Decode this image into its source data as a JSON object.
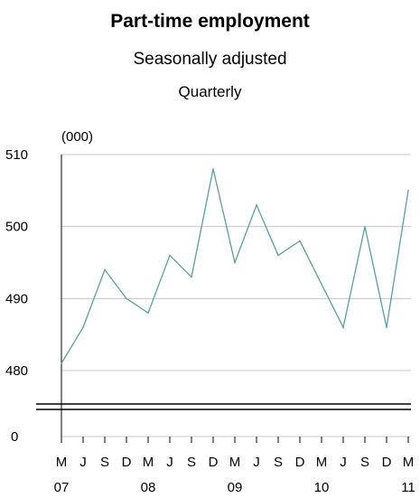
{
  "chart_data": {
    "type": "line",
    "title": "Part-time employment",
    "subtitle": "Seasonally adjusted",
    "frequency": "Quarterly",
    "unit_label": "(000)",
    "ylim": [
      480,
      510
    ],
    "yticks": [
      480,
      490,
      500,
      510
    ],
    "y_origin_label": "0",
    "axis_break": true,
    "grid": true,
    "line_color": "#5f9ea0",
    "grid_color": "#c8c8c8",
    "quarter_labels": [
      "M",
      "J",
      "S",
      "D",
      "M",
      "J",
      "S",
      "D",
      "M",
      "J",
      "S",
      "D",
      "M",
      "J",
      "S",
      "D",
      "M"
    ],
    "year_labels": [
      {
        "label": "07",
        "index": 0
      },
      {
        "label": "08",
        "index": 4
      },
      {
        "label": "09",
        "index": 8
      },
      {
        "label": "10",
        "index": 12
      },
      {
        "label": "11",
        "index": 16
      }
    ],
    "series": [
      {
        "values": [
          481,
          486,
          494,
          490,
          488,
          496,
          493,
          508,
          495,
          503,
          496,
          498,
          492,
          486,
          500,
          486,
          505
        ]
      }
    ]
  }
}
